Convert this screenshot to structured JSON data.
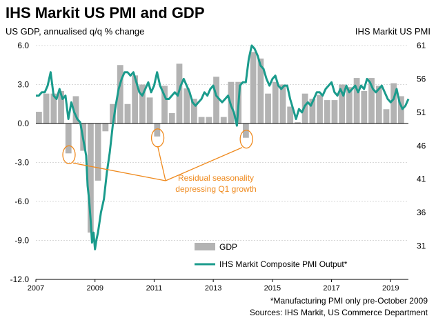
{
  "chart_data": {
    "type": "bar+line",
    "title": "IHS Markit US PMI and GDP",
    "left_axis_title": "US GDP, annualised q/q % change",
    "right_axis_title": "IHS Markit  US PMI",
    "left_ylim": [
      -12,
      6
    ],
    "right_ylim": [
      26,
      61
    ],
    "left_ticks": [
      "6.0",
      "3.0",
      "0.0",
      "-3.0",
      "-6.0",
      "-9.0",
      "-12.0"
    ],
    "left_tick_values": [
      6,
      3,
      0,
      -3,
      -6,
      -9,
      -12
    ],
    "right_ticks": [
      "61",
      "56",
      "51",
      "46",
      "41",
      "36",
      "31"
    ],
    "right_tick_values": [
      61,
      56,
      51,
      46,
      41,
      36,
      31
    ],
    "x_ticks": [
      "2007",
      "2009",
      "2011",
      "2013",
      "2015",
      "2017",
      "2019"
    ],
    "x_tick_values": [
      2007,
      2009,
      2011,
      2013,
      2015,
      2017,
      2019
    ],
    "xlim": [
      2007,
      2019.6
    ],
    "grid": true,
    "gdp_series": {
      "name": "GDP",
      "color": "#b3b3b3",
      "quarters": [
        2007.0,
        2007.25,
        2007.5,
        2007.75,
        2008.0,
        2008.25,
        2008.5,
        2008.75,
        2009.0,
        2009.25,
        2009.5,
        2009.75,
        2010.0,
        2010.25,
        2010.5,
        2010.75,
        2011.0,
        2011.25,
        2011.5,
        2011.75,
        2012.0,
        2012.25,
        2012.5,
        2012.75,
        2013.0,
        2013.25,
        2013.5,
        2013.75,
        2014.0,
        2014.25,
        2014.5,
        2014.75,
        2015.0,
        2015.25,
        2015.5,
        2015.75,
        2016.0,
        2016.25,
        2016.5,
        2016.75,
        2017.0,
        2017.25,
        2017.5,
        2017.75,
        2018.0,
        2018.25,
        2018.5,
        2018.75,
        2019.0,
        2019.25
      ],
      "values": [
        0.9,
        2.3,
        2.3,
        2.5,
        -2.3,
        2.1,
        -2.1,
        -8.4,
        -4.4,
        -0.6,
        1.5,
        4.5,
        1.5,
        3.7,
        3.0,
        2.0,
        -1.0,
        2.9,
        0.8,
        4.6,
        2.7,
        1.9,
        0.5,
        0.5,
        3.6,
        0.5,
        3.2,
        3.2,
        -1.1,
        5.5,
        5.0,
        2.3,
        3.2,
        3.0,
        1.3,
        0.1,
        2.3,
        1.9,
        2.2,
        1.8,
        1.8,
        3.0,
        2.8,
        3.5,
        2.5,
        3.5,
        2.9,
        1.1,
        3.1,
        2.1
      ]
    },
    "pmi_series": {
      "name": "IHS Markit Composite PMI Output*",
      "color": "#1a9b8c",
      "x": [
        2007.0,
        2007.1,
        2007.2,
        2007.3,
        2007.4,
        2007.5,
        2007.6,
        2007.7,
        2007.8,
        2007.9,
        2008.0,
        2008.1,
        2008.2,
        2008.3,
        2008.4,
        2008.5,
        2008.6,
        2008.7,
        2008.75,
        2008.8,
        2008.85,
        2008.9,
        2008.95,
        2009.0,
        2009.05,
        2009.1,
        2009.2,
        2009.3,
        2009.4,
        2009.5,
        2009.6,
        2009.7,
        2009.8,
        2009.9,
        2010.0,
        2010.1,
        2010.2,
        2010.3,
        2010.4,
        2010.5,
        2010.6,
        2010.7,
        2010.8,
        2010.9,
        2011.0,
        2011.1,
        2011.2,
        2011.3,
        2011.4,
        2011.5,
        2011.6,
        2011.7,
        2011.8,
        2011.9,
        2012.0,
        2012.1,
        2012.2,
        2012.3,
        2012.4,
        2012.5,
        2012.6,
        2012.7,
        2012.8,
        2012.9,
        2013.0,
        2013.1,
        2013.2,
        2013.3,
        2013.4,
        2013.5,
        2013.6,
        2013.7,
        2013.8,
        2013.9,
        2014.0,
        2014.1,
        2014.2,
        2014.3,
        2014.4,
        2014.5,
        2014.6,
        2014.7,
        2014.8,
        2014.9,
        2015.0,
        2015.1,
        2015.2,
        2015.3,
        2015.4,
        2015.5,
        2015.6,
        2015.7,
        2015.8,
        2015.9,
        2016.0,
        2016.1,
        2016.2,
        2016.3,
        2016.4,
        2016.5,
        2016.6,
        2016.7,
        2016.8,
        2016.9,
        2017.0,
        2017.1,
        2017.2,
        2017.3,
        2017.4,
        2017.5,
        2017.6,
        2017.7,
        2017.8,
        2017.9,
        2018.0,
        2018.1,
        2018.2,
        2018.3,
        2018.4,
        2018.5,
        2018.6,
        2018.7,
        2018.8,
        2018.9,
        2019.0,
        2019.1,
        2019.2,
        2019.3,
        2019.4,
        2019.5,
        2019.6
      ],
      "values": [
        53.5,
        53.5,
        54.0,
        54.0,
        55.0,
        57.0,
        53.5,
        53.0,
        54.5,
        53.0,
        53.5,
        50.0,
        52.5,
        51.0,
        50.0,
        49.5,
        47.0,
        44.5,
        40.0,
        38.0,
        35.0,
        31.5,
        33.0,
        30.5,
        32.0,
        33.0,
        36.0,
        38.0,
        42.0,
        45.0,
        49.0,
        52.0,
        54.5,
        56.0,
        57.0,
        57.0,
        56.5,
        57.0,
        55.5,
        54.0,
        53.5,
        54.5,
        55.5,
        54.0,
        55.0,
        57.0,
        55.0,
        54.0,
        53.0,
        53.0,
        53.5,
        54.0,
        53.5,
        55.0,
        56.0,
        55.0,
        54.0,
        52.5,
        52.0,
        52.5,
        53.0,
        54.0,
        53.5,
        54.5,
        55.0,
        53.5,
        53.0,
        52.5,
        53.0,
        53.5,
        52.0,
        51.0,
        49.0,
        55.0,
        55.5,
        55.5,
        59.0,
        61.0,
        60.5,
        59.5,
        58.0,
        57.5,
        56.0,
        55.0,
        56.0,
        56.5,
        55.0,
        54.5,
        55.0,
        55.0,
        53.0,
        51.5,
        50.0,
        51.5,
        51.0,
        52.0,
        52.5,
        52.0,
        53.0,
        54.0,
        54.0,
        53.5,
        54.5,
        55.0,
        55.5,
        54.0,
        53.5,
        54.5,
        53.5,
        55.0,
        54.0,
        54.5,
        55.0,
        54.0,
        55.0,
        54.5,
        56.0,
        55.5,
        54.5,
        54.0,
        54.5,
        55.0,
        54.0,
        53.0,
        52.5,
        53.0,
        54.5,
        52.5,
        51.5,
        52.0,
        53.0
      ]
    },
    "annotation_text": [
      "Residual seasonality",
      "depressing Q1 growth"
    ],
    "annotation_color": "#ef8a1e",
    "annotation_targets": [
      [
        2008.0,
        -2.3
      ],
      [
        2011.0,
        -1.0
      ],
      [
        2014.0,
        -1.1
      ]
    ],
    "footnotes": [
      "*Manufacturing PMI only pre-October 2009",
      "Sources: IHS Markit, US Commerce Department"
    ]
  }
}
